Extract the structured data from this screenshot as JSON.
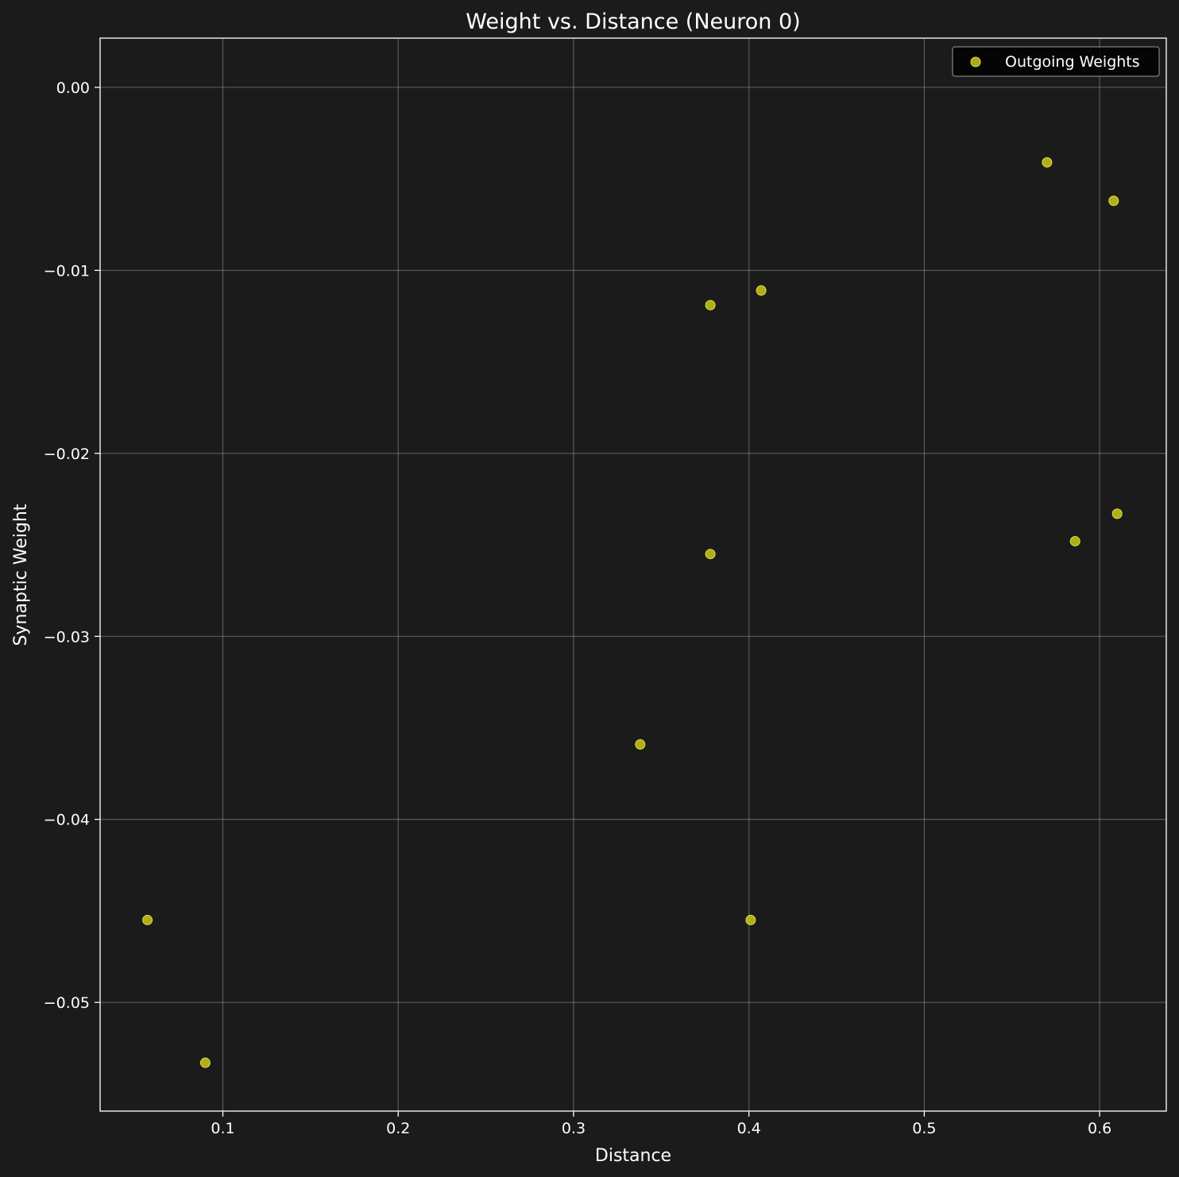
{
  "chart_data": {
    "type": "scatter",
    "title": "Weight vs. Distance (Neuron 0)",
    "xlabel": "Distance",
    "ylabel": "Synaptic Weight",
    "xlim": [
      0.03,
      0.638
    ],
    "ylim": [
      -0.05594,
      0.00269
    ],
    "xticks": [
      0.1,
      0.2,
      0.3,
      0.4,
      0.5,
      0.6
    ],
    "xtick_labels": [
      "0.1",
      "0.2",
      "0.3",
      "0.4",
      "0.5",
      "0.6"
    ],
    "yticks": [
      0.0,
      -0.01,
      -0.02,
      -0.03,
      -0.04,
      -0.05
    ],
    "ytick_labels": [
      "0.00",
      "−0.01",
      "−0.02",
      "−0.03",
      "−0.04",
      "−0.05"
    ],
    "grid": true,
    "legend_position": "top-right",
    "series": [
      {
        "name": "Outgoing Weights",
        "color": "#c9c91a",
        "points": [
          {
            "x": 0.057,
            "y": -0.0455
          },
          {
            "x": 0.09,
            "y": -0.0533
          },
          {
            "x": 0.338,
            "y": -0.0359
          },
          {
            "x": 0.378,
            "y": -0.0119
          },
          {
            "x": 0.378,
            "y": -0.0255
          },
          {
            "x": 0.401,
            "y": -0.0455
          },
          {
            "x": 0.407,
            "y": -0.0111
          },
          {
            "x": 0.57,
            "y": -0.0041
          },
          {
            "x": 0.586,
            "y": -0.0248
          },
          {
            "x": 0.608,
            "y": -0.0062
          },
          {
            "x": 0.61,
            "y": -0.0233
          }
        ]
      }
    ]
  }
}
